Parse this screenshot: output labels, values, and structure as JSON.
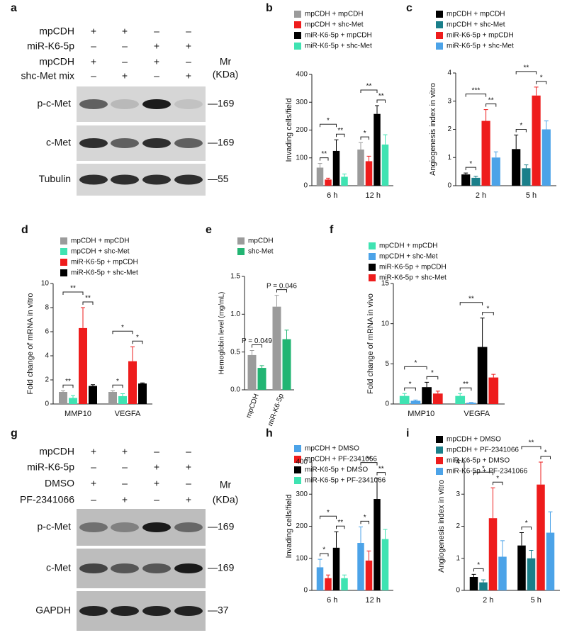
{
  "blots": [
    {
      "panel": "a",
      "mr": "Mr",
      "kda": "(KDa)",
      "conditions": [
        {
          "label": "mpCDH",
          "signs": [
            "+",
            "+",
            "–",
            "–"
          ]
        },
        {
          "label": "miR-K6-5p",
          "signs": [
            "–",
            "–",
            "+",
            "+"
          ]
        },
        {
          "label": "mpCDH",
          "signs": [
            "+",
            "–",
            "+",
            "–"
          ]
        },
        {
          "label": "shc-Met mix",
          "signs": [
            "–",
            "+",
            "–",
            "+"
          ]
        }
      ],
      "bands": [
        {
          "label": "p-c-Met",
          "marker": "—169"
        },
        {
          "label": "c-Met",
          "marker": "—169"
        },
        {
          "label": "Tubulin",
          "marker": "—55"
        }
      ]
    },
    {
      "panel": "g",
      "mr": "Mr",
      "kda": "(KDa)",
      "conditions": [
        {
          "label": "mpCDH",
          "signs": [
            "+",
            "+",
            "–",
            "–"
          ]
        },
        {
          "label": "miR-K6-5p",
          "signs": [
            "–",
            "–",
            "+",
            "+"
          ]
        },
        {
          "label": "DMSO",
          "signs": [
            "+",
            "–",
            "+",
            "–"
          ]
        },
        {
          "label": "PF-2341066",
          "signs": [
            "–",
            "+",
            "–",
            "+"
          ]
        }
      ],
      "bands": [
        {
          "label": "p-c-Met",
          "marker": "—169"
        },
        {
          "label": "c-Met",
          "marker": "—169"
        },
        {
          "label": "GAPDH",
          "marker": "—37"
        }
      ]
    }
  ],
  "chart_data": [
    {
      "type": "bar",
      "panel": "b",
      "ylabel": "Invading cells/field",
      "categories": [
        "6 h",
        "12 h"
      ],
      "series": [
        {
          "name": "mpCDH + mpCDH",
          "color": "#9b9b9b",
          "values": [
            65,
            130
          ],
          "errors": [
            15,
            25
          ]
        },
        {
          "name": "mpCDH + shc-Met",
          "color": "#ee1c1c",
          "values": [
            22,
            88
          ],
          "errors": [
            5,
            18
          ]
        },
        {
          "name": "miR-K6-5p + mpCDH",
          "color": "#000000",
          "values": [
            125,
            258
          ],
          "errors": [
            40,
            30
          ]
        },
        {
          "name": "miR-K6-5p + shc-Met",
          "color": "#3fe3b2",
          "values": [
            32,
            148
          ],
          "errors": [
            10,
            35
          ]
        }
      ],
      "ylim": [
        0,
        400
      ],
      "yticks": [
        0,
        100,
        200,
        300,
        400
      ],
      "significance": [
        "**",
        "*",
        "**",
        "*",
        "**",
        "**"
      ]
    },
    {
      "type": "bar",
      "panel": "c",
      "ylabel": "Angiogenesis index in vitro",
      "categories": [
        "2 h",
        "5 h"
      ],
      "series": [
        {
          "name": "mpCDH + mpCDH",
          "color": "#000000",
          "values": [
            0.4,
            1.3
          ],
          "errors": [
            0.05,
            0.5
          ]
        },
        {
          "name": "mpCDH + shc-Met",
          "color": "#1a7f8a",
          "values": [
            0.28,
            0.62
          ],
          "errors": [
            0.06,
            0.12
          ]
        },
        {
          "name": "miR-K6-5p + mpCDH",
          "color": "#ee1c1c",
          "values": [
            2.3,
            3.2
          ],
          "errors": [
            0.4,
            0.3
          ]
        },
        {
          "name": "miR-K6-5p + shc-Met",
          "color": "#4ca3e8",
          "values": [
            1.0,
            2.0
          ],
          "errors": [
            0.2,
            0.3
          ]
        }
      ],
      "ylim": [
        0,
        4
      ],
      "yticks": [
        0,
        1,
        2,
        3,
        4
      ],
      "significance": [
        "*",
        "***",
        "**",
        "*",
        "**",
        "*"
      ]
    },
    {
      "type": "bar",
      "panel": "d",
      "ylabel": "Fold change of mRNA in vitro",
      "categories": [
        "MMP10",
        "VEGFA"
      ],
      "series": [
        {
          "name": "mpCDH + mpCDH",
          "color": "#9b9b9b",
          "values": [
            1.0,
            1.0
          ],
          "errors": [
            0.1,
            0.1
          ]
        },
        {
          "name": "mpCDH + shc-Met",
          "color": "#3fe3b2",
          "values": [
            0.5,
            0.65
          ],
          "errors": [
            0.2,
            0.2
          ]
        },
        {
          "name": "miR-K6-5p + mpCDH",
          "color": "#ee1c1c",
          "values": [
            6.3,
            3.55
          ],
          "errors": [
            1.7,
            1.2
          ]
        },
        {
          "name": "miR-K6-5p + shc-Met",
          "color": "#000000",
          "values": [
            1.5,
            1.7
          ],
          "errors": [
            0.1,
            0.05
          ]
        }
      ],
      "ylim": [
        0,
        10
      ],
      "yticks": [
        0,
        2,
        4,
        6,
        8,
        10
      ],
      "significance": [
        "**",
        "**",
        "**",
        "*",
        "*",
        "*"
      ]
    },
    {
      "type": "bar",
      "panel": "e",
      "ylabel": "Hemoglobin level (mg/mL)",
      "categories": [
        "mpCDH",
        "miR-K6-5p"
      ],
      "series": [
        {
          "name": "mpCDH",
          "color": "#9b9b9b",
          "values": [
            0.46,
            1.1
          ],
          "errors": [
            0.06,
            0.15
          ]
        },
        {
          "name": "shc-Met",
          "color": "#22b573",
          "values": [
            0.29,
            0.67
          ],
          "errors": [
            0.03,
            0.12
          ]
        }
      ],
      "ylim": [
        0,
        1.5
      ],
      "yticks": [
        {
          "value": 0,
          "label": "0.0"
        },
        0.5,
        {
          "value": 1,
          "label": "1.0"
        },
        1.5
      ],
      "significance": [
        "P = 0.049",
        "P = 0.046"
      ]
    },
    {
      "type": "bar",
      "panel": "f",
      "ylabel": "Fold change of mRNA in vivo",
      "categories": [
        "MMP10",
        "VEGFA"
      ],
      "series": [
        {
          "name": "mpCDH + mpCDH",
          "color": "#3fe3b2",
          "values": [
            1.0,
            1.0
          ],
          "errors": [
            0.3,
            0.3
          ]
        },
        {
          "name": "mpCDH + shc-Met",
          "color": "#4ca3e8",
          "values": [
            0.4,
            0.15
          ],
          "errors": [
            0.1,
            0.05
          ]
        },
        {
          "name": "miR-K6-5p + mpCDH",
          "color": "#000000",
          "values": [
            2.1,
            7.1
          ],
          "errors": [
            0.6,
            3.6
          ]
        },
        {
          "name": "miR-K6-5p + shc-Met",
          "color": "#ee1c1c",
          "values": [
            1.3,
            3.3
          ],
          "errors": [
            0.3,
            0.4
          ]
        }
      ],
      "ylim": [
        0,
        15
      ],
      "yticks": [
        0,
        5,
        10,
        15
      ],
      "significance": [
        "*",
        "*",
        "*",
        "**",
        "**",
        "*"
      ]
    },
    {
      "type": "bar",
      "panel": "h",
      "ylabel": "Invading cells/field",
      "categories": [
        "6 h",
        "12 h"
      ],
      "series": [
        {
          "name": "mpCDH + DMSO",
          "color": "#4ca3e8",
          "values": [
            72,
            148
          ],
          "errors": [
            25,
            50
          ]
        },
        {
          "name": "mpCDH + PF-2341066",
          "color": "#ee1c1c",
          "values": [
            38,
            93
          ],
          "errors": [
            10,
            30
          ]
        },
        {
          "name": "miR-K6-5p + DMSO",
          "color": "#000000",
          "values": [
            133,
            285
          ],
          "errors": [
            50,
            65
          ]
        },
        {
          "name": "miR-K6-5p + PF-2341066",
          "color": "#3fe3b2",
          "values": [
            38,
            160
          ],
          "errors": [
            10,
            30
          ]
        }
      ],
      "ylim": [
        0,
        400
      ],
      "yticks": [
        0,
        100,
        200,
        300,
        400
      ],
      "significance": [
        "*",
        "*",
        "**",
        "*",
        "**",
        "**"
      ]
    },
    {
      "type": "bar",
      "panel": "i",
      "ylabel": "Angiogenesis index in vitro",
      "categories": [
        "2 h",
        "5 h"
      ],
      "series": [
        {
          "name": "mpCDH + DMSO",
          "color": "#000000",
          "values": [
            0.42,
            1.4
          ],
          "errors": [
            0.08,
            0.4
          ]
        },
        {
          "name": "mpCDH + PF-2341066",
          "color": "#1a7f8a",
          "values": [
            0.25,
            1.0
          ],
          "errors": [
            0.08,
            0.25
          ]
        },
        {
          "name": "miR-K6-5p + DMSO",
          "color": "#ee1c1c",
          "values": [
            2.25,
            3.3
          ],
          "errors": [
            0.95,
            0.7
          ]
        },
        {
          "name": "miR-K6-5p + PF-2341066",
          "color": "#4ca3e8",
          "values": [
            1.05,
            1.8
          ],
          "errors": [
            0.5,
            0.65
          ]
        }
      ],
      "ylim": [
        0,
        4
      ],
      "yticks": [
        0,
        1,
        2,
        3,
        4
      ],
      "significance": [
        "*",
        "*",
        "*",
        "*",
        "**",
        "*"
      ]
    }
  ]
}
